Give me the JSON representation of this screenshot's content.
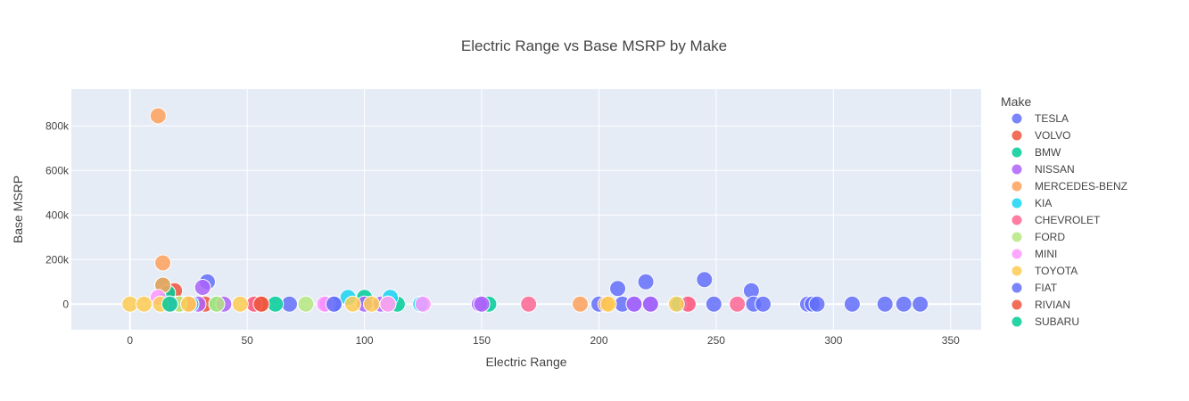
{
  "chart_data": {
    "type": "scatter",
    "title": "Electric Range vs Base MSRP by Make",
    "xlabel": "Electric Range",
    "ylabel": "Base MSRP",
    "xlim": [
      -25,
      363
    ],
    "ylim": [
      -115000,
      965000
    ],
    "x_ticks": [
      0,
      50,
      100,
      150,
      200,
      250,
      300,
      350
    ],
    "y_ticks": [
      0,
      200000,
      400000,
      600000,
      800000
    ],
    "y_tick_labels": [
      "0",
      "200k",
      "400k",
      "600k",
      "800k"
    ],
    "grid": true,
    "legend": {
      "title": "Make",
      "position": "right"
    },
    "series": [
      {
        "name": "TESLA",
        "color": "#636efa",
        "points": [
          [
            33,
            100000
          ],
          [
            87,
            0
          ],
          [
            68,
            0
          ],
          [
            200,
            0
          ],
          [
            208,
            70000
          ],
          [
            210,
            0
          ],
          [
            215,
            0
          ],
          [
            220,
            100000
          ],
          [
            222,
            0
          ],
          [
            245,
            110000
          ],
          [
            249,
            0
          ],
          [
            265,
            60000
          ],
          [
            266,
            0
          ],
          [
            270,
            0
          ],
          [
            289,
            0
          ],
          [
            291,
            0
          ],
          [
            293,
            0
          ],
          [
            308,
            0
          ],
          [
            322,
            0
          ],
          [
            330,
            0
          ],
          [
            337,
            0
          ]
        ]
      },
      {
        "name": "VOLVO",
        "color": "#ef553b",
        "points": [
          [
            19,
            60000
          ],
          [
            22,
            0
          ],
          [
            32,
            0
          ],
          [
            53,
            0
          ],
          [
            56,
            0
          ],
          [
            238,
            0
          ]
        ]
      },
      {
        "name": "BMW",
        "color": "#00cc96",
        "points": [
          [
            14,
            85000
          ],
          [
            16,
            50000
          ],
          [
            20,
            0
          ],
          [
            22,
            0
          ],
          [
            37,
            0
          ],
          [
            62,
            0
          ],
          [
            100,
            30000
          ],
          [
            114,
            0
          ],
          [
            153,
            0
          ]
        ]
      },
      {
        "name": "NISSAN",
        "color": "#ab63fa",
        "points": [
          [
            29,
            0
          ],
          [
            31,
            75000
          ],
          [
            40,
            0
          ],
          [
            84,
            0
          ],
          [
            100,
            0
          ],
          [
            107,
            0
          ],
          [
            149,
            0
          ],
          [
            150,
            0
          ],
          [
            215,
            0
          ],
          [
            222,
            0
          ]
        ]
      },
      {
        "name": "MERCEDES-BENZ",
        "color": "#ffa15a",
        "points": [
          [
            12,
            845000
          ],
          [
            14,
            185000
          ],
          [
            14,
            85000
          ],
          [
            17,
            0
          ],
          [
            21,
            0
          ],
          [
            192,
            0
          ],
          [
            203,
            0
          ]
        ]
      },
      {
        "name": "KIA",
        "color": "#19d3f3",
        "points": [
          [
            26,
            0
          ],
          [
            93,
            30000
          ],
          [
            111,
            30000
          ],
          [
            124,
            0
          ],
          [
            234,
            0
          ]
        ]
      },
      {
        "name": "CHEVROLET",
        "color": "#ff6692",
        "points": [
          [
            25,
            0
          ],
          [
            53,
            0
          ],
          [
            170,
            0
          ],
          [
            238,
            0
          ],
          [
            259,
            0
          ]
        ]
      },
      {
        "name": "FORD",
        "color": "#b6e880",
        "points": [
          [
            21,
            0
          ],
          [
            37,
            0
          ],
          [
            75,
            0
          ],
          [
            110,
            0
          ]
        ]
      },
      {
        "name": "MINI",
        "color": "#ff97ff",
        "points": [
          [
            12,
            30000
          ],
          [
            17,
            0
          ],
          [
            83,
            0
          ],
          [
            110,
            0
          ],
          [
            125,
            0
          ]
        ]
      },
      {
        "name": "TOYOTA",
        "color": "#fecb52",
        "points": [
          [
            0,
            0
          ],
          [
            6,
            0
          ],
          [
            13,
            0
          ],
          [
            25,
            0
          ],
          [
            47,
            0
          ],
          [
            95,
            0
          ],
          [
            103,
            0
          ],
          [
            204,
            0
          ],
          [
            233,
            0
          ]
        ]
      },
      {
        "name": "FIAT",
        "color": "#636efa",
        "points": [
          [
            87,
            0
          ]
        ]
      },
      {
        "name": "RIVIAN",
        "color": "#ef553b",
        "points": [
          [
            56,
            0
          ]
        ]
      },
      {
        "name": "SUBARU",
        "color": "#00cc96",
        "points": [
          [
            17,
            0
          ]
        ]
      }
    ]
  }
}
